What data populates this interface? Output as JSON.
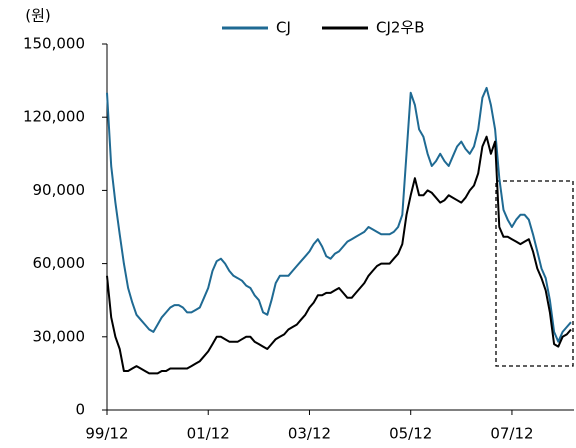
{
  "chart_data": {
    "type": "line",
    "y_unit_label": "(원)",
    "legend": "top",
    "x": [
      "99/12",
      "00/01",
      "00/02",
      "00/03",
      "00/04",
      "00/05",
      "00/06",
      "00/07",
      "00/08",
      "00/09",
      "00/10",
      "00/11",
      "00/12",
      "01/01",
      "01/02",
      "01/03",
      "01/04",
      "01/05",
      "01/06",
      "01/07",
      "01/08",
      "01/09",
      "01/10",
      "01/11",
      "01/12",
      "02/01",
      "02/02",
      "02/03",
      "02/04",
      "02/05",
      "02/06",
      "02/07",
      "02/08",
      "02/09",
      "02/10",
      "02/11",
      "02/12",
      "03/01",
      "03/02",
      "03/03",
      "03/04",
      "03/05",
      "03/06",
      "03/07",
      "03/08",
      "03/09",
      "03/10",
      "03/11",
      "03/12",
      "04/01",
      "04/02",
      "04/03",
      "04/04",
      "04/05",
      "04/06",
      "04/07",
      "04/08",
      "04/09",
      "04/10",
      "04/11",
      "04/12",
      "05/01",
      "05/02",
      "05/03",
      "05/04",
      "05/05",
      "05/06",
      "05/07",
      "05/08",
      "05/09",
      "05/10",
      "05/11",
      "05/12",
      "06/01",
      "06/02",
      "06/03",
      "06/04",
      "06/05",
      "06/06",
      "06/07",
      "06/08",
      "06/09",
      "06/10",
      "06/11",
      "06/12",
      "07/01",
      "07/02",
      "07/03",
      "07/04",
      "07/05",
      "07/06",
      "07/07",
      "07/08",
      "07/09",
      "07/10",
      "07/11",
      "07/12",
      "08/01",
      "08/02",
      "08/03",
      "08/04",
      "08/05",
      "08/06",
      "08/07",
      "08/08",
      "08/09",
      "08/10",
      "08/11",
      "08/12",
      "09/01",
      "09/02"
    ],
    "xticks": [
      "99/12",
      "01/12",
      "03/12",
      "05/12",
      "07/12"
    ],
    "series": [
      {
        "name": "CJ",
        "color": "#1f6a93",
        "values": [
          130000,
          100000,
          85000,
          72000,
          60000,
          50000,
          44000,
          39000,
          37000,
          35000,
          33000,
          32000,
          35000,
          38000,
          40000,
          42000,
          43000,
          43000,
          42000,
          40000,
          40000,
          41000,
          42000,
          46000,
          50000,
          57000,
          61000,
          62000,
          60000,
          57000,
          55000,
          54000,
          53000,
          51000,
          50000,
          47000,
          45000,
          40000,
          39000,
          45000,
          52000,
          55000,
          55000,
          55000,
          57000,
          59000,
          61000,
          63000,
          65000,
          68000,
          70000,
          67000,
          63000,
          62000,
          64000,
          65000,
          67000,
          69000,
          70000,
          71000,
          72000,
          73000,
          75000,
          74000,
          73000,
          72000,
          72000,
          72000,
          73000,
          75000,
          80000,
          105000,
          130000,
          125000,
          115000,
          112000,
          105000,
          100000,
          102000,
          105000,
          102000,
          100000,
          104000,
          108000,
          110000,
          107000,
          105000,
          108000,
          115000,
          128000,
          132000,
          125000,
          115000,
          95000,
          82000,
          78000,
          75000,
          78000,
          80000,
          80000,
          78000,
          72000,
          65000,
          58000,
          54000,
          45000,
          32000,
          28000,
          32000,
          34000,
          36000
        ]
      },
      {
        "name": "CJ2우B",
        "color": "#000000",
        "values": [
          55000,
          38000,
          30000,
          25000,
          16000,
          16000,
          17000,
          18000,
          17000,
          16000,
          15000,
          15000,
          15000,
          16000,
          16000,
          17000,
          17000,
          17000,
          17000,
          17000,
          18000,
          19000,
          20000,
          22000,
          24000,
          27000,
          30000,
          30000,
          29000,
          28000,
          28000,
          28000,
          29000,
          30000,
          30000,
          28000,
          27000,
          26000,
          25000,
          27000,
          29000,
          30000,
          31000,
          33000,
          34000,
          35000,
          37000,
          39000,
          42000,
          44000,
          47000,
          47000,
          48000,
          48000,
          49000,
          50000,
          48000,
          46000,
          46000,
          48000,
          50000,
          52000,
          55000,
          57000,
          59000,
          60000,
          60000,
          60000,
          62000,
          64000,
          68000,
          80000,
          88000,
          95000,
          88000,
          88000,
          90000,
          89000,
          87000,
          85000,
          86000,
          88000,
          87000,
          86000,
          85000,
          87000,
          90000,
          92000,
          97000,
          108000,
          112000,
          105000,
          110000,
          75000,
          71000,
          71000,
          70000,
          69000,
          68000,
          69000,
          70000,
          65000,
          58000,
          54000,
          49000,
          40000,
          27000,
          26000,
          30000,
          31000,
          33000
        ]
      }
    ],
    "ylim": [
      0,
      150000
    ],
    "yticks": [
      0,
      {
        "value": 30000,
        "label": "30,000"
      },
      {
        "value": 60000,
        "label": "60,000"
      },
      {
        "value": 90000,
        "label": "90,000"
      },
      {
        "value": 120000,
        "label": "120,000"
      },
      {
        "value": 150000,
        "label": "150,000"
      }
    ],
    "grid": false
  }
}
